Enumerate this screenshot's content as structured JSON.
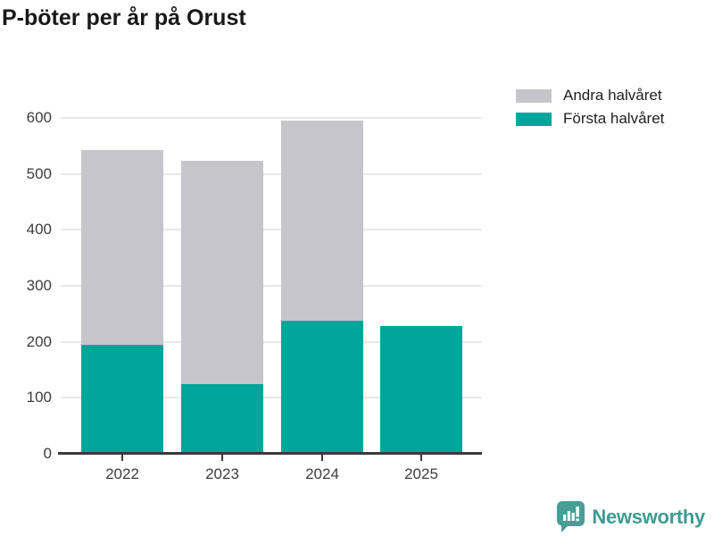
{
  "title": "P-böter per år på Orust",
  "colors": {
    "first_half": "#00a69b",
    "second_half": "#c7c5cc",
    "gridline": "#e8e7ea",
    "axis": "#3a3a3a",
    "tick_text": "#3d3d3d",
    "title_text": "#191919",
    "brand_teal": "#3f9b94"
  },
  "legend": [
    {
      "label": "Andra halvåret",
      "color_key": "second_half"
    },
    {
      "label": "Första halvåret",
      "color_key": "first_half"
    }
  ],
  "branding": {
    "name": "Newsworthy",
    "icon": "speech-bubble-bar-chart-icon"
  },
  "chart_data": {
    "type": "bar",
    "stacked": true,
    "title": "P-böter per år på Orust",
    "categories": [
      "2022",
      "2023",
      "2024",
      "2025"
    ],
    "series": [
      {
        "name": "Första halvåret",
        "color_key": "first_half",
        "values": [
          195,
          124,
          237,
          229
        ]
      },
      {
        "name": "Andra halvåret",
        "color_key": "second_half",
        "values": [
          348,
          400,
          358,
          0
        ]
      }
    ],
    "totals": [
      543,
      524,
      595,
      229
    ],
    "xlabel": "",
    "ylabel": "",
    "ylim": [
      0,
      600
    ],
    "yticks": [
      0,
      100,
      200,
      300,
      400,
      500,
      600
    ],
    "grid": true,
    "legend_position": "top-right"
  }
}
